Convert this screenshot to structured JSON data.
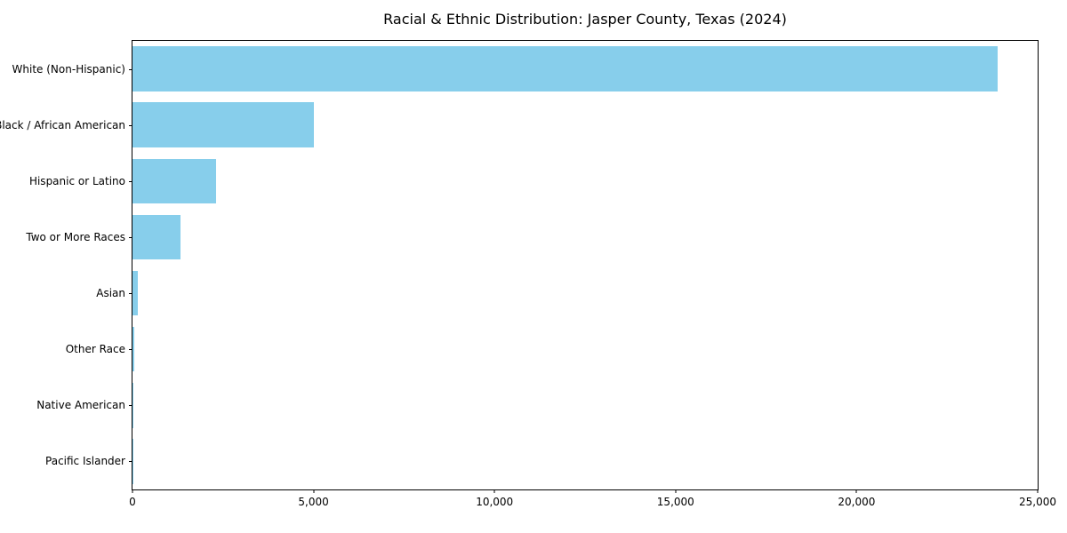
{
  "chart": {
    "title": "Racial & Ethnic Distribution: Jasper County, Texas (2024)"
  },
  "chart_data": {
    "type": "bar",
    "orientation": "horizontal",
    "title": "Racial & Ethnic Distribution: Jasper County, Texas (2024)",
    "xlabel": "",
    "ylabel": "",
    "categories": [
      "White (Non-Hispanic)",
      "Black / African American",
      "Hispanic or Latino",
      "Two or More Races",
      "Asian",
      "Other Race",
      "Native American",
      "Pacific Islander"
    ],
    "values": [
      23900,
      5000,
      2300,
      1320,
      150,
      40,
      30,
      10
    ],
    "xlim": [
      0,
      25000
    ],
    "bar_color": "#87CEEB",
    "grid": false,
    "legend": null,
    "xticks": [
      {
        "value": 0,
        "label": "0"
      },
      {
        "value": 5000,
        "label": "5,000"
      },
      {
        "value": 10000,
        "label": "10,000"
      },
      {
        "value": 15000,
        "label": "15,000"
      },
      {
        "value": 20000,
        "label": "20,000"
      },
      {
        "value": 25000,
        "label": "25,000"
      }
    ]
  }
}
